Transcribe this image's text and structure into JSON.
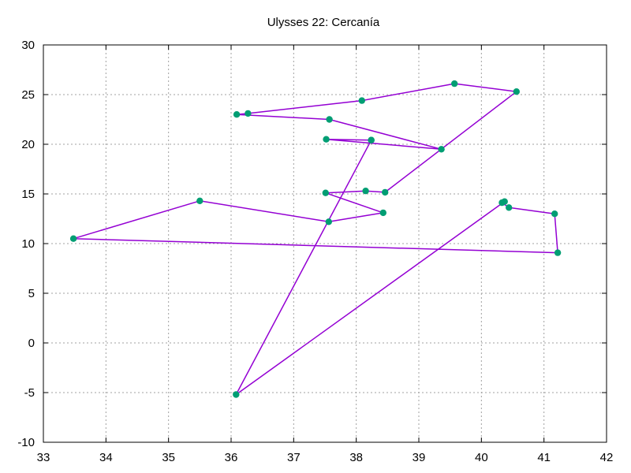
{
  "chart_data": {
    "type": "line",
    "title": "Ulysses 22: Cercanía",
    "xlabel": "",
    "ylabel": "",
    "xlim": [
      33,
      42
    ],
    "ylim": [
      -10,
      30
    ],
    "xticks": [
      33,
      34,
      35,
      36,
      37,
      38,
      39,
      40,
      41,
      42
    ],
    "yticks": [
      -10,
      -5,
      0,
      5,
      10,
      15,
      20,
      25,
      30
    ],
    "grid": true,
    "legend": "none",
    "series": [
      {
        "line_color": "#9400d3",
        "marker_color": "#009e73",
        "points": [
          [
            38.24,
            20.42
          ],
          [
            36.08,
            -5.2
          ],
          [
            40.37,
            14.23
          ],
          [
            40.33,
            14.12
          ],
          [
            40.44,
            13.63
          ],
          [
            41.17,
            13.0
          ],
          [
            41.22,
            9.08
          ],
          [
            33.48,
            10.5
          ],
          [
            35.5,
            14.3
          ],
          [
            37.56,
            12.2
          ],
          [
            38.43,
            13.1
          ],
          [
            37.51,
            15.1
          ],
          [
            38.15,
            15.3
          ],
          [
            38.46,
            15.17
          ],
          [
            40.56,
            25.3
          ],
          [
            39.57,
            26.1
          ],
          [
            38.09,
            24.4
          ],
          [
            36.27,
            23.1
          ],
          [
            36.09,
            23.0
          ],
          [
            37.57,
            22.5
          ],
          [
            39.36,
            19.5
          ],
          [
            37.52,
            20.5
          ],
          [
            38.24,
            20.42
          ]
        ]
      }
    ]
  }
}
